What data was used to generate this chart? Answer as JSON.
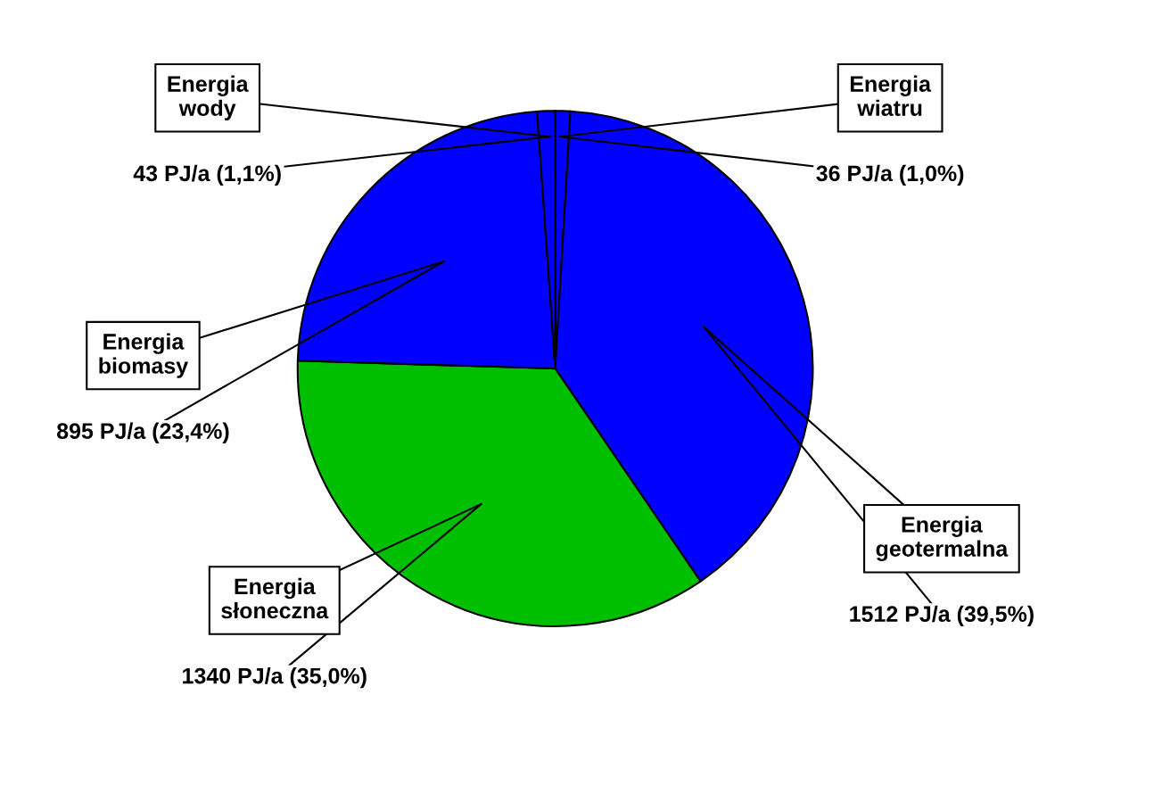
{
  "chart_data": {
    "type": "pie",
    "categories": [
      "Energia wiatru",
      "Energia geotermalna",
      "Energia słoneczna",
      "Energia biomasy",
      "Energia wody"
    ],
    "values": [
      36,
      1512,
      1340,
      895,
      43
    ],
    "colors": [
      "#0000ff",
      "#0000ff",
      "#00bf00",
      "#0000ff",
      "#0000ff"
    ],
    "value_labels": [
      "36 PJ/a (1,0%)",
      "1512 PJ/a (39,5%)",
      "1340 PJ/a (35,0%)",
      "895 PJ/a (23,4%)",
      "43 PJ/a (1,1%)"
    ],
    "legend": false
  }
}
